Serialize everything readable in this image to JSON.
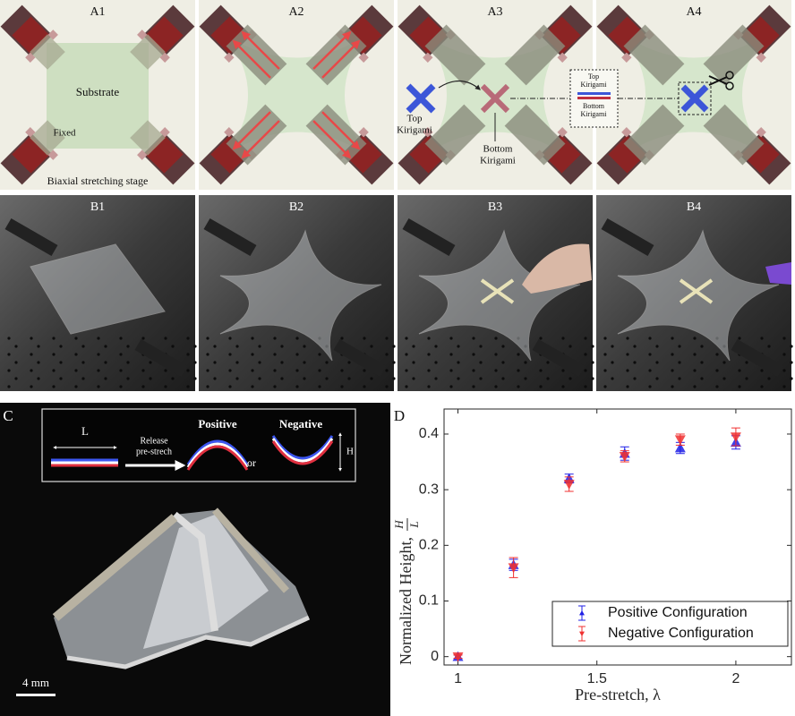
{
  "panels": {
    "a": {
      "labels": [
        "A1",
        "A2",
        "A3",
        "A4"
      ],
      "substrate": "Substrate",
      "fixed": "Fixed",
      "stage": "Biaxial stretching stage",
      "top_kirigami": [
        "Top",
        "Kirigami"
      ],
      "bottom_kirigami": [
        "Bottom",
        "Kirigami"
      ],
      "box_top": [
        "Top",
        "Kirigami"
      ],
      "box_bottom": [
        "Bottom",
        "Kirigami"
      ]
    },
    "b": {
      "labels": [
        "B1",
        "B2",
        "B3",
        "B4"
      ]
    },
    "c": {
      "label": "C",
      "length": "L",
      "release": [
        "Release",
        "pre-strech"
      ],
      "positive": "Positive",
      "or": "or",
      "negative": "Negative",
      "height": "H",
      "scale": "4 mm"
    },
    "d": {
      "label": "D"
    }
  },
  "chart_data": {
    "type": "errorbar",
    "x_label": "Pre-stretch, λ",
    "y_label": "Normalized Height, ",
    "y_label_fraction": [
      "H",
      "L"
    ],
    "xlim": [
      0.95,
      2.2
    ],
    "ylim": [
      -0.015,
      0.445
    ],
    "xticks": [
      1,
      1.5,
      2
    ],
    "yticks": [
      0,
      0.1,
      0.2,
      0.3,
      0.4
    ],
    "x": [
      1,
      1.2,
      1.4,
      1.6,
      1.8,
      2
    ],
    "series": [
      {
        "name": "Positive Configuration",
        "color": "#1f1fe6",
        "marker": "up",
        "values": [
          0,
          0.165,
          0.32,
          0.365,
          0.375,
          0.385
        ],
        "errors": [
          0.003,
          0.01,
          0.008,
          0.012,
          0.01,
          0.012
        ]
      },
      {
        "name": "Negative Configuration",
        "color": "#f03030",
        "marker": "down",
        "values": [
          0,
          0.16,
          0.31,
          0.36,
          0.39,
          0.395
        ],
        "errors": [
          0.003,
          0.018,
          0.013,
          0.01,
          0.01,
          0.016
        ]
      }
    ],
    "legend": "lower right"
  }
}
